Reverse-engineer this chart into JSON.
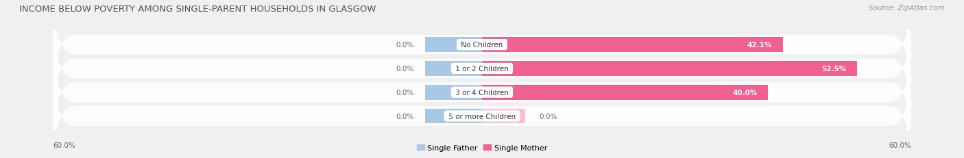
{
  "title": "INCOME BELOW POVERTY AMONG SINGLE-PARENT HOUSEHOLDS IN GLASGOW",
  "source": "Source: ZipAtlas.com",
  "categories": [
    "No Children",
    "1 or 2 Children",
    "3 or 4 Children",
    "5 or more Children"
  ],
  "single_father": [
    0.0,
    0.0,
    0.0,
    0.0
  ],
  "single_mother": [
    42.1,
    52.5,
    40.0,
    0.0
  ],
  "father_color": "#a8c8e8",
  "mother_color": "#f06090",
  "mother_color_light": "#f8c0d0",
  "axis_min": -60.0,
  "axis_max": 60.0,
  "axis_label_left": "60.0%",
  "axis_label_right": "60.0%",
  "background_color": "#f0f0f0",
  "row_bg_color": "#e0e0e0",
  "title_fontsize": 9.5,
  "source_fontsize": 7.5,
  "bar_fontsize": 7.5,
  "label_fontsize": 7.5,
  "legend_fontsize": 8
}
